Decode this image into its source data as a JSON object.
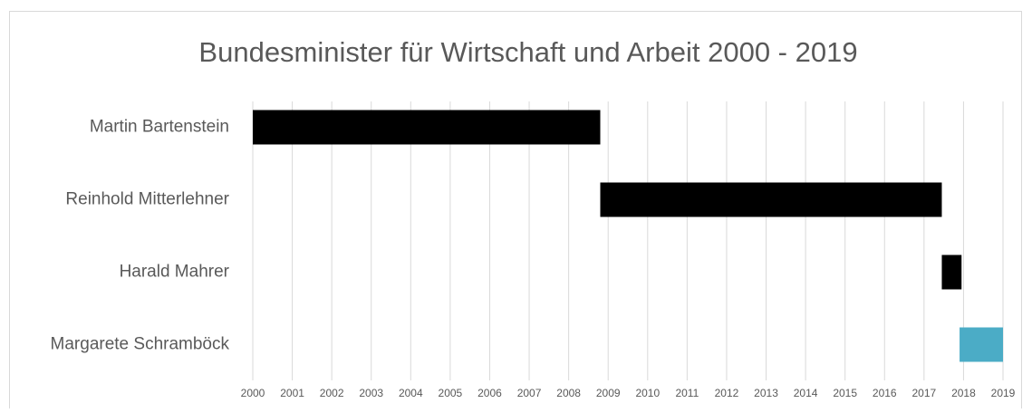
{
  "chart_data": {
    "type": "gantt",
    "title": "Bundesminister für Wirtschaft und Arbeit 2000 - 2019",
    "categories": [
      "Martin Bartenstein",
      "Reinhold Mitterlehner",
      "Harald Mahrer",
      "Margarete Schramböck"
    ],
    "start": [
      2000.0,
      2008.8,
      2017.45,
      2017.9
    ],
    "end": [
      2008.8,
      2017.45,
      2017.95,
      2019.0
    ],
    "colors": [
      "#000000",
      "#000000",
      "#000000",
      "#4bacc6"
    ],
    "xlim": [
      2000,
      2019
    ],
    "xticks": [
      2000,
      2001,
      2002,
      2003,
      2004,
      2005,
      2006,
      2007,
      2008,
      2009,
      2010,
      2011,
      2012,
      2013,
      2014,
      2015,
      2016,
      2017,
      2018,
      2019
    ],
    "grid": true
  }
}
